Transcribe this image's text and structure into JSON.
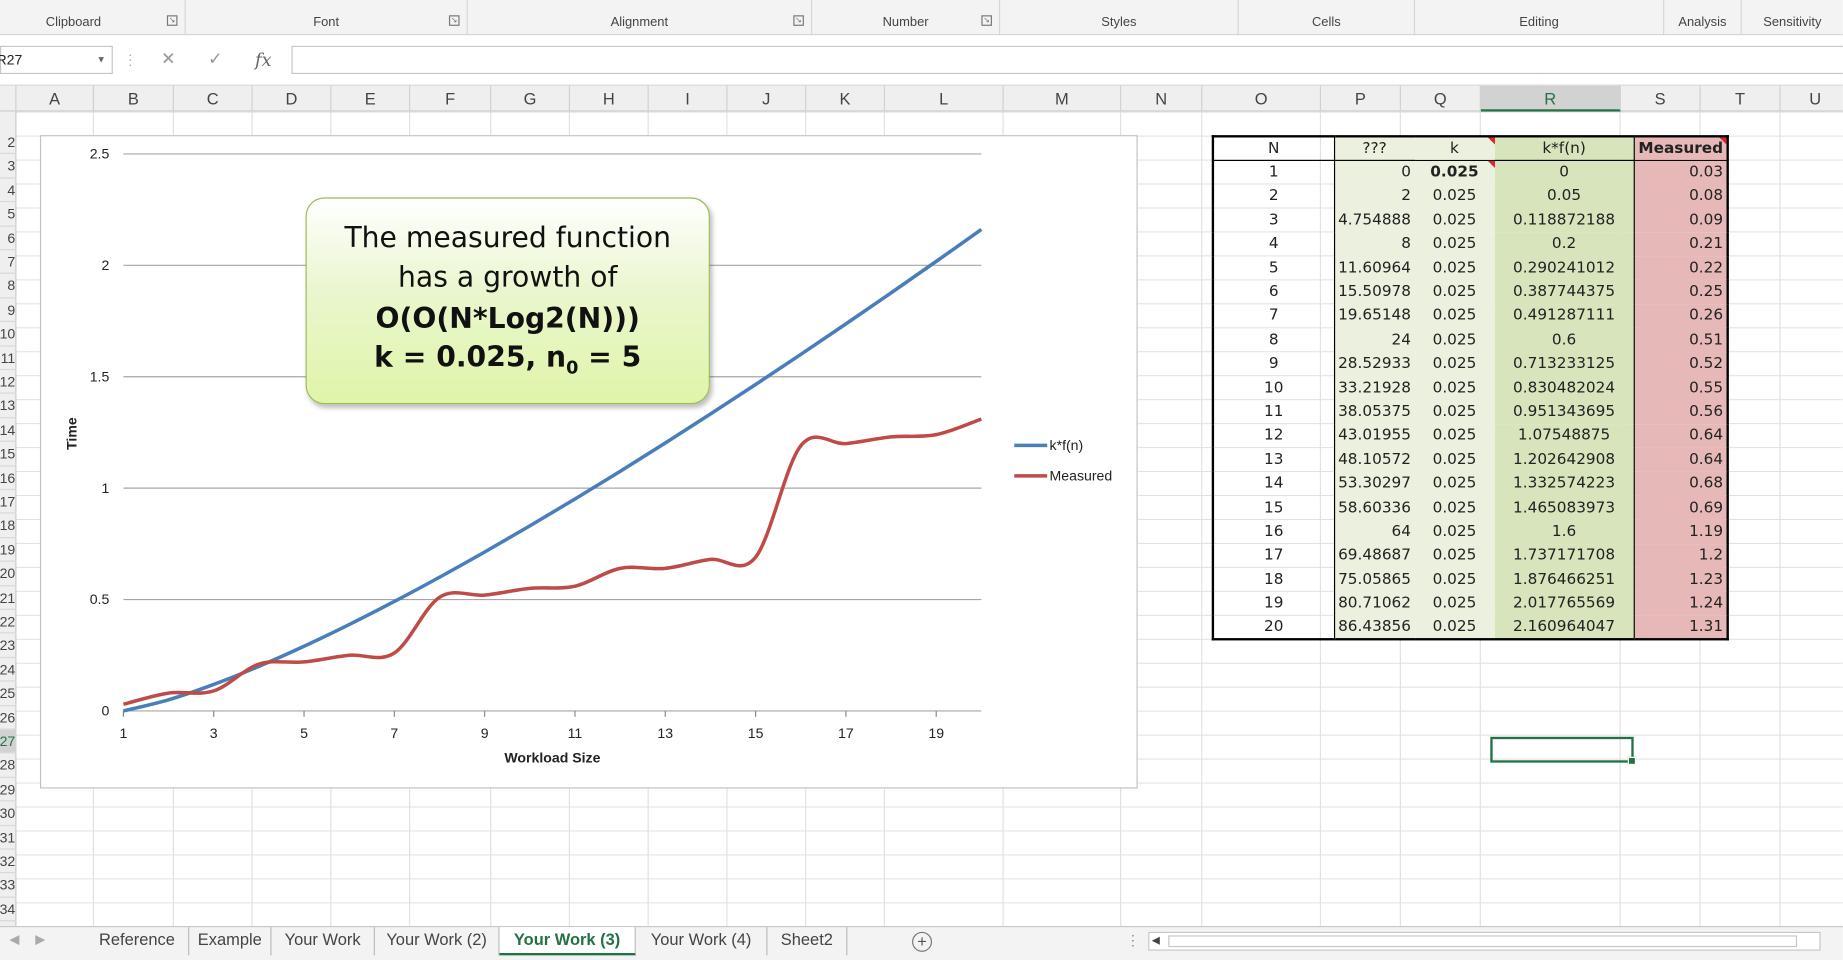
{
  "ribbon": {
    "groups": [
      "Clipboard",
      "Font",
      "Alignment",
      "Number",
      "Styles",
      "Cells",
      "Editing",
      "Analysis",
      "Sensitivity"
    ]
  },
  "formula_bar": {
    "name_box": "R27",
    "cancel_icon": "✕",
    "enter_icon": "✓",
    "fx_icon": "fx",
    "formula": ""
  },
  "columns": [
    "A",
    "B",
    "C",
    "D",
    "E",
    "F",
    "G",
    "H",
    "I",
    "J",
    "K",
    "L",
    "M",
    "N",
    "O",
    "P",
    "Q",
    "R",
    "S",
    "T",
    "U"
  ],
  "rows": [
    "2",
    "3",
    "4",
    "5",
    "6",
    "7",
    "8",
    "9",
    "10",
    "11",
    "12",
    "13",
    "14",
    "15",
    "16",
    "17",
    "18",
    "19",
    "20",
    "21",
    "22",
    "23",
    "24",
    "25",
    "26",
    "27",
    "28",
    "29",
    "30",
    "31",
    "32",
    "33",
    "34"
  ],
  "selected_column": "R",
  "selected_row": "27",
  "callout": {
    "line1": "The measured function",
    "line2": "has a growth of",
    "line3": "O(O(N*Log2(N)))",
    "line4_prefix": "k = 0.025, n",
    "line4_sub": "0",
    "line4_suffix": " = 5"
  },
  "chart_data": {
    "type": "line",
    "title": "",
    "xlabel": "Workload Size",
    "ylabel": "Time",
    "x": [
      1,
      2,
      3,
      4,
      5,
      6,
      7,
      8,
      9,
      10,
      11,
      12,
      13,
      14,
      15,
      16,
      17,
      18,
      19,
      20
    ],
    "x_ticks": [
      "1",
      "3",
      "5",
      "7",
      "9",
      "11",
      "13",
      "15",
      "17",
      "19"
    ],
    "y_ticks": [
      "0",
      "0.5",
      "1",
      "1.5",
      "2",
      "2.5"
    ],
    "ylim": [
      0,
      2.5
    ],
    "grid": true,
    "legend_position": "right",
    "series": [
      {
        "name": "k*f(n)",
        "color": "#4a7ebb",
        "values": [
          0,
          0.05,
          0.118872188,
          0.2,
          0.290241012,
          0.387744375,
          0.491287111,
          0.6,
          0.713233125,
          0.830482024,
          0.951343695,
          1.07548875,
          1.202642908,
          1.332574223,
          1.465083973,
          1.6,
          1.737171708,
          1.876466251,
          2.017765569,
          2.160964047
        ]
      },
      {
        "name": "Measured",
        "color": "#be4b48",
        "values": [
          0.03,
          0.08,
          0.09,
          0.21,
          0.22,
          0.25,
          0.26,
          0.51,
          0.52,
          0.55,
          0.56,
          0.64,
          0.64,
          0.68,
          0.69,
          1.19,
          1.2,
          1.23,
          1.24,
          1.31
        ]
      }
    ]
  },
  "table": {
    "headers": [
      "N",
      "???",
      "k",
      "k*f(n)",
      "Measured"
    ],
    "rows": [
      [
        "1",
        "0",
        "0.025",
        "0",
        "0.03"
      ],
      [
        "2",
        "2",
        "0.025",
        "0.05",
        "0.08"
      ],
      [
        "3",
        "4.754888",
        "0.025",
        "0.118872188",
        "0.09"
      ],
      [
        "4",
        "8",
        "0.025",
        "0.2",
        "0.21"
      ],
      [
        "5",
        "11.60964",
        "0.025",
        "0.290241012",
        "0.22"
      ],
      [
        "6",
        "15.50978",
        "0.025",
        "0.387744375",
        "0.25"
      ],
      [
        "7",
        "19.65148",
        "0.025",
        "0.491287111",
        "0.26"
      ],
      [
        "8",
        "24",
        "0.025",
        "0.6",
        "0.51"
      ],
      [
        "9",
        "28.52933",
        "0.025",
        "0.713233125",
        "0.52"
      ],
      [
        "10",
        "33.21928",
        "0.025",
        "0.830482024",
        "0.55"
      ],
      [
        "11",
        "38.05375",
        "0.025",
        "0.951343695",
        "0.56"
      ],
      [
        "12",
        "43.01955",
        "0.025",
        "1.07548875",
        "0.64"
      ],
      [
        "13",
        "48.10572",
        "0.025",
        "1.202642908",
        "0.64"
      ],
      [
        "14",
        "53.30297",
        "0.025",
        "1.332574223",
        "0.68"
      ],
      [
        "15",
        "58.60336",
        "0.025",
        "1.465083973",
        "0.69"
      ],
      [
        "16",
        "64",
        "0.025",
        "1.6",
        "1.19"
      ],
      [
        "17",
        "69.48687",
        "0.025",
        "1.737171708",
        "1.2"
      ],
      [
        "18",
        "75.05865",
        "0.025",
        "1.876466251",
        "1.23"
      ],
      [
        "19",
        "80.71062",
        "0.025",
        "2.017765569",
        "1.24"
      ],
      [
        "20",
        "86.43856",
        "0.025",
        "2.160964047",
        "1.31"
      ]
    ]
  },
  "sheet_tabs": [
    "Reference",
    "Example",
    "Your Work",
    "Your Work (2)",
    "Your Work (3)",
    "Your Work (4)",
    "Sheet2"
  ],
  "active_tab": "Your Work (3)",
  "add_sheet_icon": "+"
}
